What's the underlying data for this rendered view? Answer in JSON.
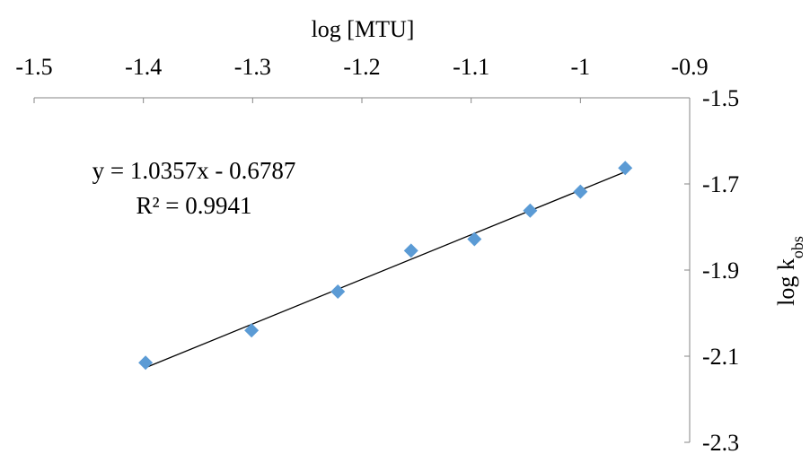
{
  "chart_data": {
    "type": "scatter",
    "title": "",
    "xlabel": "log [MTU]",
    "ylabel_main": "log k",
    "ylabel_sub": "obs",
    "x_axis_position": "top",
    "y_axis_position": "right",
    "xlim": [
      -1.5,
      -0.9
    ],
    "ylim": [
      -2.3,
      -1.5
    ],
    "x_ticks": [
      -1.5,
      -1.4,
      -1.3,
      -1.2,
      -1.1,
      -1,
      -0.9
    ],
    "x_tick_labels": [
      "-1.5",
      "-1.4",
      "-1.3",
      "-1.2",
      "-1.1",
      "-1",
      "-0.9"
    ],
    "y_ticks": [
      -1.5,
      -1.7,
      -1.9,
      -2.1,
      -2.3
    ],
    "y_tick_labels": [
      "-1.5",
      "-1.7",
      "-1.9",
      "-2.1",
      "-2.3"
    ],
    "grid": false,
    "legend": "none",
    "marker_color": "#5B9BD5",
    "trendline_color": "#000000",
    "series": [
      {
        "x": [
          -1.398,
          -1.301,
          -1.222,
          -1.155,
          -1.097,
          -1.046,
          -1.0,
          -0.959
        ],
        "y": [
          -2.115,
          -2.04,
          -1.95,
          -1.855,
          -1.828,
          -1.762,
          -1.718,
          -1.663
        ]
      }
    ],
    "trendline": {
      "slope": 1.0357,
      "intercept": -0.6787,
      "x_range": [
        -1.398,
        -0.959
      ]
    },
    "annotations": {
      "equation": "y = 1.0357x - 0.6787",
      "r_squared": "R² = 0.9941"
    }
  }
}
